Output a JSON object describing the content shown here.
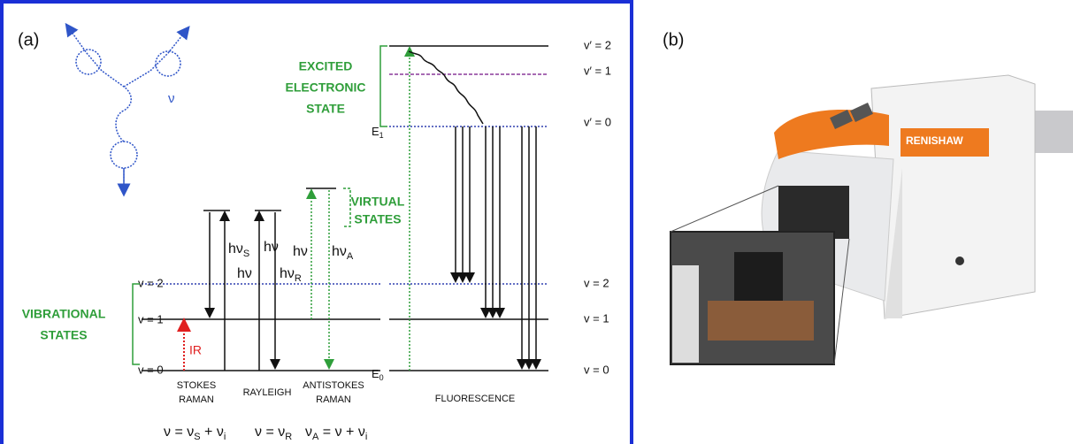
{
  "panels": {
    "a": {
      "label": "(a)"
    },
    "b": {
      "label": "(b)"
    }
  },
  "molecule": {
    "label": "ν"
  },
  "excited_state": {
    "lines": [
      "EXCITED",
      "ELECTRONIC",
      "STATE"
    ],
    "energy": {
      "main": "E",
      "sub": "1"
    },
    "levels": [
      "v′ = 2",
      "v′ = 1",
      "v′ = 0"
    ]
  },
  "virtual_states": {
    "lines": [
      "VIRTUAL",
      "STATES"
    ]
  },
  "ground_state": {
    "lines": [
      "VIBRATIONAL",
      "STATES"
    ],
    "energy": {
      "main": "E",
      "sub": "0"
    },
    "levels_left": [
      "v = 2",
      "v = 1",
      "v = 0"
    ],
    "levels_right": [
      "v = 2",
      "v = 1",
      "v = 0"
    ]
  },
  "ir": "IR",
  "transitions": [
    {
      "main": "hν",
      "sub": "S"
    },
    {
      "main": "hν"
    },
    {
      "main": "hν"
    },
    {
      "main": "hν",
      "sub": "R"
    },
    {
      "main": "hν"
    },
    {
      "main": "hν",
      "sub": "A"
    }
  ],
  "processes": [
    {
      "lines": [
        "STOKES",
        "RAMAN"
      ]
    },
    {
      "lines": [
        "RAYLEIGH"
      ]
    },
    {
      "lines": [
        "ANTISTOKES",
        "RAMAN"
      ]
    },
    {
      "lines": [
        "FLUORESCENCE"
      ]
    }
  ],
  "equations": [
    [
      {
        "text": "ν = ν"
      },
      {
        "sub": "S"
      },
      {
        "text": " + ν"
      },
      {
        "sub": "i"
      }
    ],
    [
      {
        "text": "ν = ν"
      },
      {
        "sub": "R"
      }
    ],
    [
      {
        "text": "ν"
      },
      {
        "sub": "A"
      },
      {
        "text": " = ν + ν"
      },
      {
        "sub": "i"
      }
    ]
  ],
  "instrument": {
    "brand": "RENISHAW"
  }
}
